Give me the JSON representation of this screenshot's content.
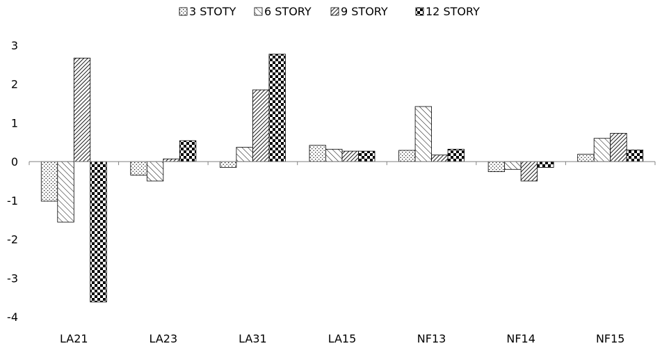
{
  "chart_data": {
    "type": "bar",
    "categories": [
      "LA21",
      "LA23",
      "LA31",
      "LA15",
      "NF13",
      "NF14",
      "NF15"
    ],
    "series": [
      {
        "name": "3 STOTY",
        "pattern": "dots",
        "values": [
          -1.02,
          -0.35,
          -0.15,
          0.42,
          0.29,
          -0.26,
          0.19
        ]
      },
      {
        "name": "6 STORY",
        "pattern": "diag",
        "values": [
          -1.56,
          -0.5,
          0.37,
          0.32,
          1.42,
          -0.2,
          0.6
        ]
      },
      {
        "name": "9 STORY",
        "pattern": "diag-dense",
        "values": [
          2.67,
          0.07,
          1.85,
          0.27,
          0.17,
          -0.5,
          0.73
        ]
      },
      {
        "name": "12 STORY",
        "pattern": "checker",
        "values": [
          -3.62,
          0.54,
          2.77,
          0.27,
          0.32,
          -0.15,
          0.3
        ]
      }
    ],
    "ylim": [
      -4,
      3
    ],
    "yticks": [
      -4,
      -3,
      -2,
      -1,
      0,
      1,
      2,
      3
    ],
    "legend_position": "top",
    "grid": false
  }
}
